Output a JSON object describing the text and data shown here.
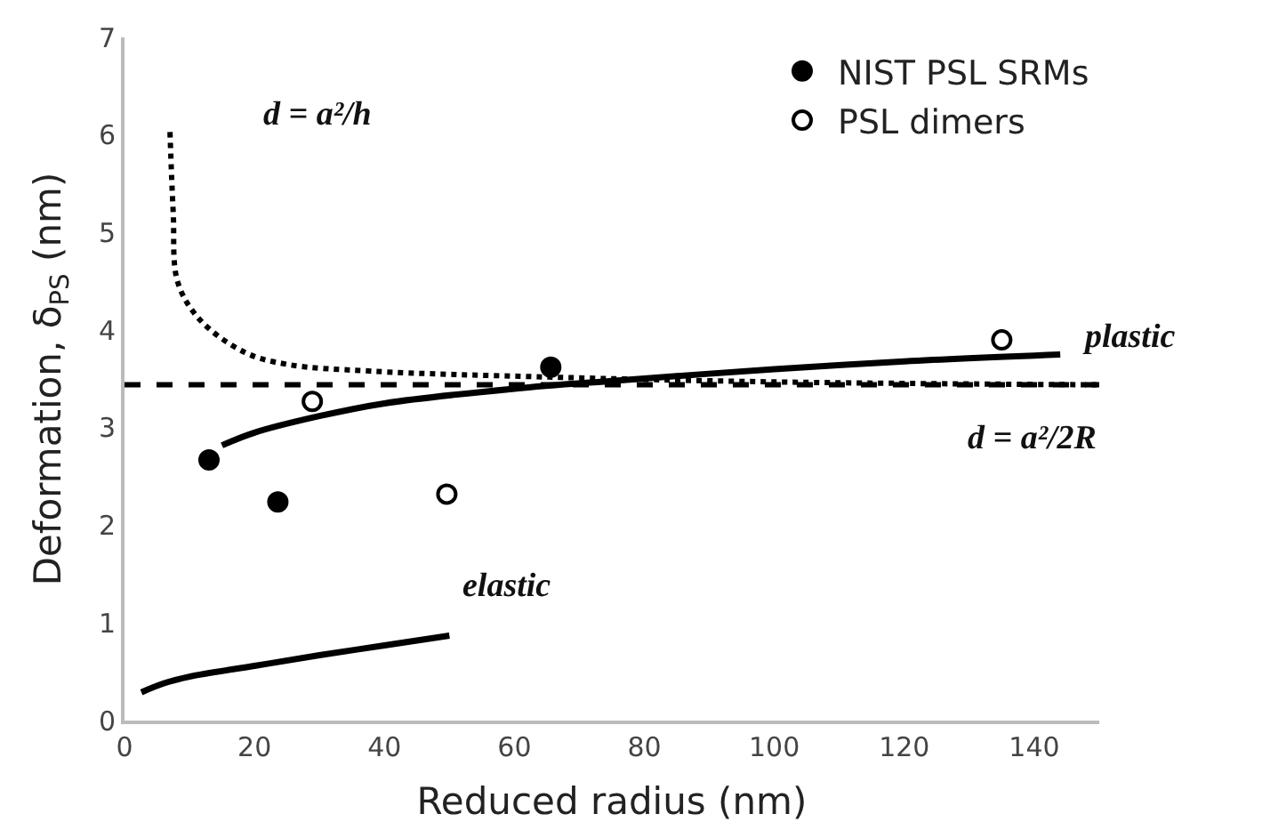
{
  "chart_data": {
    "type": "scatter",
    "xlabel": "Reduced radius (nm)",
    "ylabel": "Deformation, δ$_{PS}$ (nm)",
    "xlim": [
      0,
      150
    ],
    "xticks": [
      0,
      20,
      40,
      60,
      80,
      100,
      120,
      140
    ],
    "ylim": [
      0,
      7
    ],
    "yticks": [
      0,
      1,
      2,
      3,
      4,
      5,
      6,
      7
    ],
    "legend": "top right",
    "series": [
      {
        "name": "NIST PSL SRMs",
        "marker": "circle",
        "color": "#000000",
        "x": [
          13,
          23.6,
          65.6
        ],
        "values": [
          2.67,
          2.24,
          3.62
        ]
      },
      {
        "name": "PSL dimers",
        "marker": "circle-open",
        "color": "#000000",
        "x": [
          28.9,
          49.6,
          135
        ],
        "values": [
          3.27,
          2.32,
          3.9
        ]
      },
      {
        "name": "d = a²/h",
        "type": "line",
        "line_style": "dotted",
        "color": "#000000",
        "x": [
          7,
          7.5,
          8.2,
          11.7,
          18.6,
          25,
          38,
          65,
          100,
          150
        ],
        "values": [
          6.03,
          5.2,
          4.49,
          4.1,
          3.77,
          3.65,
          3.58,
          3.52,
          3.47,
          3.44
        ]
      },
      {
        "name": "plastic",
        "type": "line",
        "line_style": "solid",
        "color": "#000000",
        "x": [
          15,
          20,
          30,
          40,
          60,
          75,
          100,
          120,
          144
        ],
        "values": [
          2.82,
          2.95,
          3.12,
          3.25,
          3.4,
          3.48,
          3.6,
          3.68,
          3.75
        ]
      },
      {
        "name": "elastic",
        "type": "line",
        "line_style": "solid",
        "color": "#000000",
        "x": [
          2.6,
          6,
          10,
          20,
          30,
          40,
          50
        ],
        "values": [
          0.29,
          0.38,
          0.45,
          0.56,
          0.67,
          0.77,
          0.87
        ]
      }
    ],
    "ref_lines": [
      {
        "axis": "y",
        "value": 3.44,
        "label": "d = a²/2R",
        "line_style": "dashed",
        "color": "#000000"
      }
    ]
  }
}
